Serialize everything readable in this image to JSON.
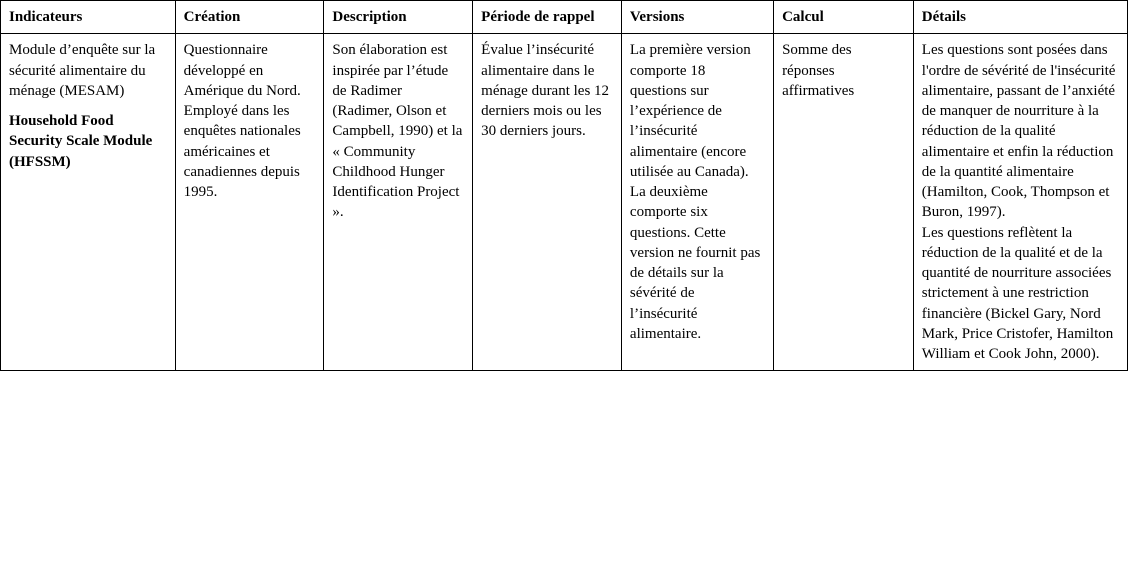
{
  "table": {
    "border_color": "#000000",
    "background_color": "#ffffff",
    "text_color": "#000000",
    "font_family": "Times New Roman",
    "header_fontsize": 15,
    "cell_fontsize": 15,
    "columns": [
      {
        "key": "indicateurs",
        "label": "Indicateurs",
        "width_pct": 15.5
      },
      {
        "key": "creation",
        "label": "Création",
        "width_pct": 13.2
      },
      {
        "key": "description",
        "label": "Description",
        "width_pct": 13.2
      },
      {
        "key": "periode",
        "label": "Période de rappel",
        "width_pct": 13.2
      },
      {
        "key": "versions",
        "label": "Versions",
        "width_pct": 13.5
      },
      {
        "key": "calcul",
        "label": "Calcul",
        "width_pct": 12.4
      },
      {
        "key": "details",
        "label": "Détails",
        "width_pct": 19.0
      }
    ],
    "row": {
      "indicateurs": {
        "line1": "Module d’enquête sur la sécurité alimentaire du ménage (MESAM)",
        "line2_bold": "Household Food Security Scale Module (HFSSM)"
      },
      "creation": "Questionnaire développé en Amérique du Nord. Employé dans les enquêtes nationales américaines et canadiennes depuis 1995.",
      "description": "Son élaboration est inspirée par l’étude de Radimer (Radimer, Olson et Campbell, 1990) et la « Community Childhood Hunger Identification Project ».",
      "periode": "Évalue l’insécurité alimentaire dans le ménage durant les 12 derniers mois ou les 30 derniers jours.",
      "versions": {
        "p1": "La première version comporte 18 questions sur l’expérience de l’insécurité alimentaire (encore utilisée au Canada).",
        "p2": "La deuxième comporte six questions. Cette version ne fournit pas de détails sur la sévérité de l’insécurité alimentaire."
      },
      "calcul": "Somme des réponses affirmatives",
      "details": {
        "p1": "Les questions sont posées dans l'ordre de sévérité de l'insécurité alimentaire, passant de l’anxiété de manquer de nourriture à la réduction de la qualité alimentaire et enfin la réduction de la quantité alimentaire (Hamilton, Cook, Thompson et Buron, 1997).",
        "p2": "Les questions reflètent la réduction de la qualité et de la quantité de nourriture associées strictement à une restriction financière (Bickel Gary, Nord Mark, Price Cristofer, Hamilton William et Cook John, 2000)."
      }
    }
  }
}
